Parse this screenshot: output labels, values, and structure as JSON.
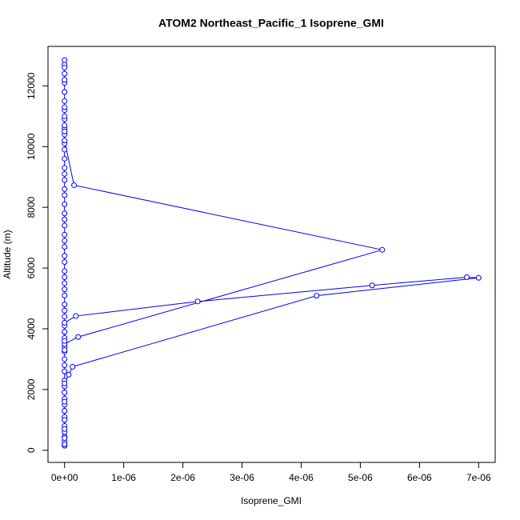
{
  "chart_data": {
    "type": "scatter",
    "title": "ATOM2 Northeast_Pacific_1 Isoprene_GMI",
    "x_label": "Isoprene_GMI",
    "y_label": "Altitude (m)",
    "xlim": [
      -2.8e-07,
      7.28e-06
    ],
    "ylim": [
      -400,
      13300
    ],
    "xticks": [
      {
        "value": 0,
        "label": "0e+00"
      },
      {
        "value": 1e-06,
        "label": "1e-06"
      },
      {
        "value": 2e-06,
        "label": "2e-06"
      },
      {
        "value": 3e-06,
        "label": "3e-06"
      },
      {
        "value": 4e-06,
        "label": "4e-06"
      },
      {
        "value": 5e-06,
        "label": "5e-06"
      },
      {
        "value": 6e-06,
        "label": "6e-06"
      },
      {
        "value": 7e-06,
        "label": "7e-06"
      }
    ],
    "yticks": [
      0,
      2000,
      4000,
      6000,
      8000,
      10000,
      12000
    ],
    "series": [
      {
        "color": "#0000ff",
        "x": [
          0,
          0,
          0,
          0,
          0,
          0,
          0,
          0,
          0,
          0,
          0,
          0,
          0,
          0,
          0,
          0,
          0,
          0,
          0,
          0,
          0,
          0,
          0,
          0,
          0,
          0,
          0,
          0,
          0,
          0,
          0,
          0,
          0,
          0,
          0,
          0,
          0,
          0,
          0,
          0,
          0,
          0,
          0,
          0,
          0,
          0,
          0,
          0,
          0,
          0,
          0,
          0,
          0,
          0,
          0,
          0,
          0,
          0,
          0,
          0,
          0,
          0,
          0,
          0,
          0,
          1.6e-07,
          5.37e-06,
          2.3e-07,
          0,
          0,
          0,
          0,
          0,
          1.9e-07,
          2.25e-06,
          5.2e-06,
          6.8e-06,
          7e-06,
          4.26e-06,
          1.35e-07,
          7e-08,
          0,
          0,
          0,
          0,
          0,
          0,
          0,
          0
        ],
        "values": [
          150,
          200,
          300,
          450,
          600,
          800,
          1000,
          1100,
          1300,
          1500,
          1700,
          1900,
          2100,
          2300,
          2600,
          2800,
          3000,
          3250,
          3400,
          3700,
          3900,
          4100,
          4400,
          4600,
          4800,
          5100,
          5300,
          5500,
          5700,
          5900,
          6200,
          6400,
          6700,
          6900,
          7100,
          7400,
          7600,
          7800,
          8100,
          8400,
          8600,
          8900,
          9100,
          9300,
          9600,
          9900,
          10100,
          10400,
          10600,
          10900,
          11200,
          11500,
          11800,
          12100,
          12400,
          12700,
          12850,
          12600,
          12200,
          11800,
          11300,
          11000,
          10700,
          10500,
          10200,
          8730,
          6600,
          3730,
          3500,
          3300,
          3600,
          3900,
          4200,
          4420,
          4900,
          5430,
          5700,
          5680,
          5090,
          2750,
          2490,
          2200,
          1900,
          1600,
          1300,
          1000,
          700,
          400,
          200
        ]
      }
    ]
  }
}
